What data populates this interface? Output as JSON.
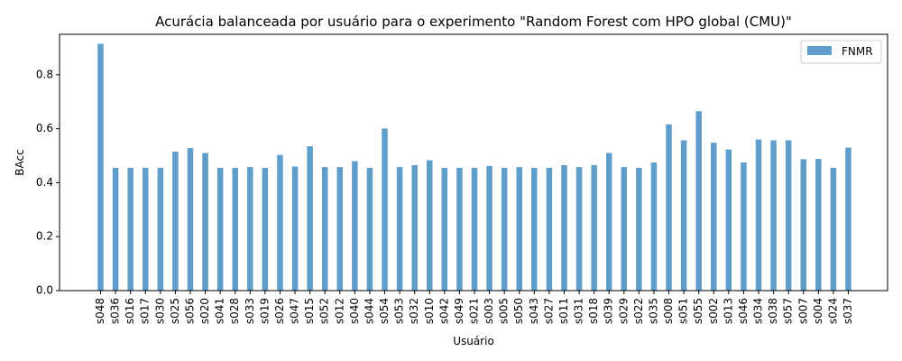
{
  "chart_data": {
    "type": "bar",
    "title": "Acurácia balanceada por usuário para o experimento \"Random Forest com HPO global (CMU)\"",
    "xlabel": "Usuário",
    "ylabel": "BAcc",
    "ylim": [
      0,
      0.95
    ],
    "yticks": [
      "0.0",
      "0.2",
      "0.4",
      "0.6",
      "0.8"
    ],
    "grid": false,
    "legend_position": "top-right",
    "color": "#5f9ecb",
    "categories": [
      "s048",
      "s036",
      "s016",
      "s017",
      "s030",
      "s025",
      "s056",
      "s020",
      "s041",
      "s028",
      "s033",
      "s019",
      "s026",
      "s047",
      "s015",
      "s052",
      "s012",
      "s040",
      "s044",
      "s054",
      "s053",
      "s032",
      "s010",
      "s042",
      "s049",
      "s021",
      "s003",
      "s005",
      "s050",
      "s043",
      "s027",
      "s011",
      "s031",
      "s018",
      "s039",
      "s029",
      "s022",
      "s035",
      "s008",
      "s051",
      "s055",
      "s002",
      "s013",
      "s046",
      "s034",
      "s038",
      "s057",
      "s007",
      "s004",
      "s024",
      "s037"
    ],
    "series": [
      {
        "name": "FNMR",
        "values": [
          0.915,
          0.455,
          0.455,
          0.455,
          0.455,
          0.515,
          0.528,
          0.51,
          0.455,
          0.455,
          0.458,
          0.455,
          0.503,
          0.46,
          0.535,
          0.458,
          0.458,
          0.48,
          0.455,
          0.601,
          0.458,
          0.465,
          0.483,
          0.455,
          0.455,
          0.455,
          0.462,
          0.455,
          0.458,
          0.455,
          0.455,
          0.465,
          0.458,
          0.465,
          0.51,
          0.458,
          0.455,
          0.475,
          0.616,
          0.557,
          0.665,
          0.548,
          0.523,
          0.475,
          0.56,
          0.557,
          0.557,
          0.487,
          0.488,
          0.455,
          0.53
        ]
      }
    ]
  }
}
